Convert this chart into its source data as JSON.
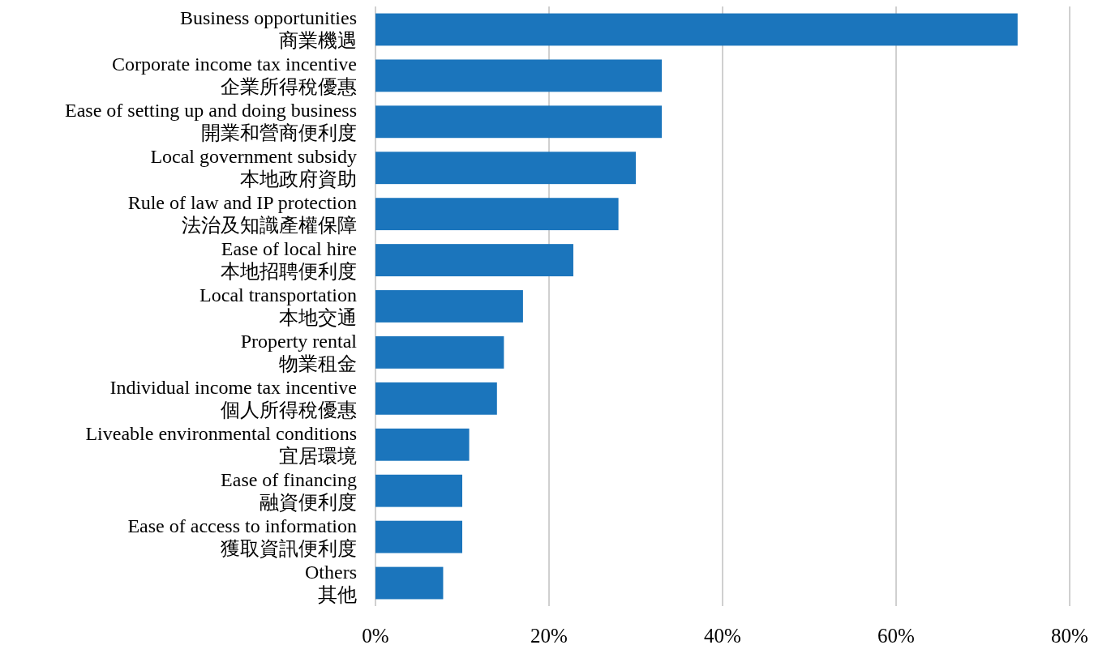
{
  "chart_data": {
    "type": "bar",
    "orientation": "horizontal",
    "color": "#1b75bc",
    "grid": "x",
    "categories": [
      "Business opportunities\n商業機遇",
      "Corporate income tax incentive\n企業所得稅優惠",
      "Ease of setting up and doing business\n開業和營商便利度",
      "Local government subsidy\n本地政府資助",
      "Rule of law and IP protection\n法治及知識產權保障",
      "Ease of local hire\n本地招聘便利度",
      "Local transportation\n本地交通",
      "Property rental\n物業租金",
      "Individual income tax incentive\n個人所得稅優惠",
      "Liveable environmental conditions\n宜居環境",
      "Ease of financing\n融資便利度",
      "Ease of access to information\n獲取資訊便利度",
      "Others\n其他"
    ],
    "values": [
      74,
      33,
      33,
      30,
      28,
      22.8,
      17,
      14.8,
      14,
      10.8,
      10,
      10,
      7.8
    ],
    "xlim": [
      0,
      80
    ],
    "xticks": [
      {
        "value": 0,
        "label": "0%"
      },
      {
        "value": 20,
        "label": "20%"
      },
      {
        "value": 40,
        "label": "40%"
      },
      {
        "value": 60,
        "label": "60%"
      },
      {
        "value": 80,
        "label": "80%"
      }
    ]
  }
}
